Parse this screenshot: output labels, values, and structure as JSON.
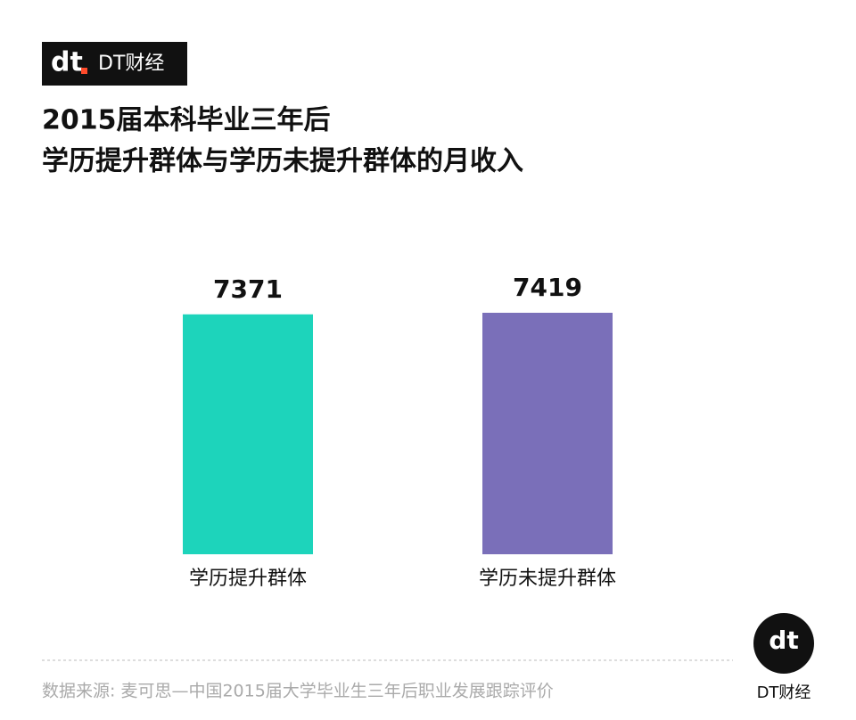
{
  "logo": {
    "mark": "dt",
    "text": "DT财经"
  },
  "chart_data": {
    "type": "bar",
    "title": [
      "2015届本科毕业三年后",
      "学历提升群体与学历未提升群体的月收入"
    ],
    "categories": [
      "学历提升群体",
      "学历未提升群体"
    ],
    "values": [
      7371,
      7419
    ],
    "colors": [
      "#1dd4bb",
      "#7a6fb9"
    ],
    "source": "数据来源: 麦可思—中国2015届大学毕业生三年后职业发展跟踪评价"
  },
  "footer_logo": {
    "mark": "dt",
    "text": "DT财经"
  }
}
